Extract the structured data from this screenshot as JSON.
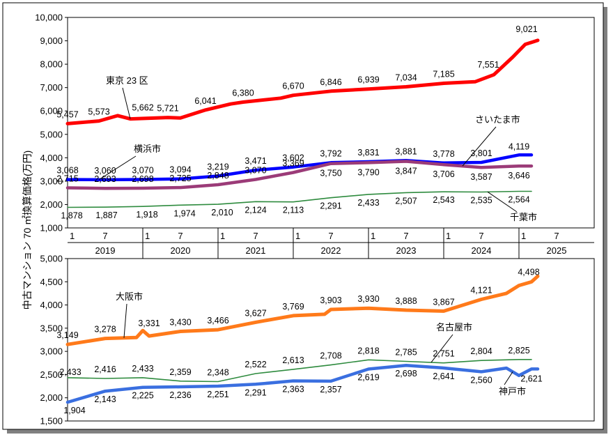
{
  "y_axis_label": "中古マンション 70 ㎡換算価格(万円)",
  "x_axis": {
    "month_ticks": [
      "1",
      "7"
    ],
    "years": [
      "2019",
      "2020",
      "2021",
      "2022",
      "2023",
      "2024",
      "2025"
    ]
  },
  "chart_data": [
    {
      "type": "line",
      "panel": "top",
      "ylim": [
        1000,
        10000
      ],
      "yticks": [
        "1,000",
        "2,000",
        "3,000",
        "4,000",
        "5,000",
        "6,000",
        "7,000",
        "8,000",
        "9,000",
        "10,000"
      ],
      "x_range": [
        "2019-01",
        "2025-12"
      ],
      "grid": false,
      "series": [
        {
          "name": "東京 23 区",
          "color": "#ff0000",
          "points": [
            [
              "2019-01",
              5457
            ],
            [
              "2019-06",
              5573
            ],
            [
              "2019-09",
              5800
            ],
            [
              "2019-11",
              5662
            ],
            [
              "2020-05",
              5721
            ],
            [
              "2020-07",
              5700
            ],
            [
              "2020-11",
              6041
            ],
            [
              "2021-03",
              6300
            ],
            [
              "2021-05",
              6380
            ],
            [
              "2021-11",
              6550
            ],
            [
              "2022-01",
              6670
            ],
            [
              "2022-07",
              6846
            ],
            [
              "2023-01",
              6939
            ],
            [
              "2023-07",
              7034
            ],
            [
              "2024-01",
              7185
            ],
            [
              "2024-06",
              7250
            ],
            [
              "2024-09",
              7551
            ],
            [
              "2024-12",
              8300
            ],
            [
              "2025-02",
              8850
            ],
            [
              "2025-04",
              9021
            ]
          ],
          "labels": [
            {
              "at": "2019-01",
              "text": "5,457"
            },
            {
              "at": "2019-06",
              "text": "5,573"
            },
            {
              "at": "2019-11",
              "text": "5,662"
            },
            {
              "at": "2020-05",
              "text": "5,721"
            },
            {
              "at": "2020-11",
              "text": "6,041"
            },
            {
              "at": "2021-05",
              "text": "6,380"
            },
            {
              "at": "2022-01",
              "text": "6,670"
            },
            {
              "at": "2022-07",
              "text": "6,846"
            },
            {
              "at": "2023-01",
              "text": "6,939"
            },
            {
              "at": "2023-07",
              "text": "7,034"
            },
            {
              "at": "2024-01",
              "text": "7,185"
            },
            {
              "at": "2024-09",
              "text": "7,551"
            },
            {
              "at": "2025-04",
              "text": "9,021"
            }
          ]
        },
        {
          "name": "横浜市",
          "color": "#0000ff",
          "points": [
            [
              "2019-01",
              3068
            ],
            [
              "2019-07",
              3060
            ],
            [
              "2020-01",
              3070
            ],
            [
              "2020-07",
              3094
            ],
            [
              "2021-01",
              3219
            ],
            [
              "2021-07",
              3471
            ],
            [
              "2022-01",
              3602
            ],
            [
              "2022-07",
              3792
            ],
            [
              "2023-01",
              3831
            ],
            [
              "2023-07",
              3881
            ],
            [
              "2024-01",
              3778
            ],
            [
              "2024-07",
              3801
            ],
            [
              "2025-01",
              4119
            ],
            [
              "2025-03",
              4119
            ]
          ],
          "labels": [
            {
              "at": "2019-01",
              "text": "3,068"
            },
            {
              "at": "2019-07",
              "text": "3,060"
            },
            {
              "at": "2020-01",
              "text": "3,070"
            },
            {
              "at": "2020-07",
              "text": "3,094"
            },
            {
              "at": "2021-01",
              "text": "3,219"
            },
            {
              "at": "2021-07",
              "text": "3,471"
            },
            {
              "at": "2022-01",
              "text": "3,602"
            },
            {
              "at": "2022-07",
              "text": "3,792"
            },
            {
              "at": "2023-01",
              "text": "3,831"
            },
            {
              "at": "2023-07",
              "text": "3,881"
            },
            {
              "at": "2024-01",
              "text": "3,778"
            },
            {
              "at": "2024-07",
              "text": "3,801"
            },
            {
              "at": "2025-01",
              "text": "4,119"
            }
          ]
        },
        {
          "name": "さいたま市",
          "color": "#9b3b78",
          "points": [
            [
              "2019-01",
              2715
            ],
            [
              "2019-07",
              2693
            ],
            [
              "2020-01",
              2698
            ],
            [
              "2020-07",
              2725
            ],
            [
              "2021-01",
              2848
            ],
            [
              "2021-07",
              3070
            ],
            [
              "2022-01",
              3369
            ],
            [
              "2022-07",
              3750
            ],
            [
              "2023-01",
              3790
            ],
            [
              "2023-07",
              3847
            ],
            [
              "2024-01",
              3706
            ],
            [
              "2024-07",
              3587
            ],
            [
              "2025-01",
              3646
            ],
            [
              "2025-03",
              3646
            ]
          ],
          "labels": [
            {
              "at": "2019-01",
              "text": "2,715"
            },
            {
              "at": "2019-07",
              "text": "2,693"
            },
            {
              "at": "2020-01",
              "text": "2,698"
            },
            {
              "at": "2020-07",
              "text": "2,725"
            },
            {
              "at": "2021-01",
              "text": "2,848"
            },
            {
              "at": "2021-07",
              "text": "3,070"
            },
            {
              "at": "2022-01",
              "text": "3,369"
            },
            {
              "at": "2022-07",
              "text": "3,750"
            },
            {
              "at": "2023-01",
              "text": "3,790"
            },
            {
              "at": "2023-07",
              "text": "3,847"
            },
            {
              "at": "2024-01",
              "text": "3,706"
            },
            {
              "at": "2024-07",
              "text": "3,587"
            },
            {
              "at": "2025-01",
              "text": "3,646"
            }
          ]
        },
        {
          "name": "千葉市",
          "color": "#2e8b3e",
          "points": [
            [
              "2019-01",
              1878
            ],
            [
              "2019-07",
              1887
            ],
            [
              "2020-01",
              1918
            ],
            [
              "2020-07",
              1974
            ],
            [
              "2021-01",
              2010
            ],
            [
              "2021-07",
              2124
            ],
            [
              "2022-01",
              2113
            ],
            [
              "2022-07",
              2291
            ],
            [
              "2023-01",
              2433
            ],
            [
              "2023-07",
              2507
            ],
            [
              "2024-01",
              2543
            ],
            [
              "2024-07",
              2535
            ],
            [
              "2025-01",
              2564
            ],
            [
              "2025-03",
              2564
            ]
          ],
          "labels": [
            {
              "at": "2019-01",
              "text": "1,878"
            },
            {
              "at": "2019-07",
              "text": "1,887"
            },
            {
              "at": "2020-01",
              "text": "1,918"
            },
            {
              "at": "2020-07",
              "text": "1,974"
            },
            {
              "at": "2021-01",
              "text": "2,010"
            },
            {
              "at": "2021-07",
              "text": "2,124"
            },
            {
              "at": "2022-01",
              "text": "2,113"
            },
            {
              "at": "2022-07",
              "text": "2,291"
            },
            {
              "at": "2023-01",
              "text": "2,433"
            },
            {
              "at": "2023-07",
              "text": "2,507"
            },
            {
              "at": "2024-01",
              "text": "2,543"
            },
            {
              "at": "2024-07",
              "text": "2,535"
            },
            {
              "at": "2025-01",
              "text": "2,564"
            }
          ]
        }
      ]
    },
    {
      "type": "line",
      "panel": "bottom",
      "ylim": [
        1500,
        5000
      ],
      "yticks": [
        "1,500",
        "2,000",
        "2,500",
        "3,000",
        "3,500",
        "4,000",
        "4,500",
        "5,000"
      ],
      "x_range": [
        "2019-01",
        "2025-12"
      ],
      "grid": false,
      "series": [
        {
          "name": "大阪市",
          "color": "#ff7a1a",
          "points": [
            [
              "2019-01",
              3149
            ],
            [
              "2019-07",
              3278
            ],
            [
              "2019-12",
              3300
            ],
            [
              "2020-01",
              3450
            ],
            [
              "2020-02",
              3331
            ],
            [
              "2020-07",
              3430
            ],
            [
              "2021-01",
              3466
            ],
            [
              "2021-07",
              3627
            ],
            [
              "2022-01",
              3769
            ],
            [
              "2022-06",
              3800
            ],
            [
              "2022-07",
              3903
            ],
            [
              "2023-01",
              3930
            ],
            [
              "2023-07",
              3888
            ],
            [
              "2024-01",
              3867
            ],
            [
              "2024-07",
              4121
            ],
            [
              "2024-11",
              4250
            ],
            [
              "2025-01",
              4420
            ],
            [
              "2025-03",
              4498
            ],
            [
              "2025-04",
              4620
            ]
          ],
          "labels": [
            {
              "at": "2019-01",
              "text": "3,149"
            },
            {
              "at": "2019-07",
              "text": "3,278"
            },
            {
              "at": "2020-02",
              "text": "3,331"
            },
            {
              "at": "2020-07",
              "text": "3,430"
            },
            {
              "at": "2021-01",
              "text": "3,466"
            },
            {
              "at": "2021-07",
              "text": "3,627"
            },
            {
              "at": "2022-01",
              "text": "3,769"
            },
            {
              "at": "2022-07",
              "text": "3,903"
            },
            {
              "at": "2023-01",
              "text": "3,930"
            },
            {
              "at": "2023-07",
              "text": "3,888"
            },
            {
              "at": "2024-01",
              "text": "3,867"
            },
            {
              "at": "2024-07",
              "text": "4,121"
            },
            {
              "at": "2025-03",
              "text": "4,498"
            }
          ]
        },
        {
          "name": "名古屋市",
          "color": "#2e8b3e",
          "points": [
            [
              "2019-01",
              2433
            ],
            [
              "2019-07",
              2416
            ],
            [
              "2020-01",
              2433
            ],
            [
              "2020-07",
              2359
            ],
            [
              "2021-01",
              2348
            ],
            [
              "2021-07",
              2522
            ],
            [
              "2022-01",
              2613
            ],
            [
              "2022-07",
              2708
            ],
            [
              "2023-01",
              2818
            ],
            [
              "2023-07",
              2785
            ],
            [
              "2024-01",
              2751
            ],
            [
              "2024-07",
              2804
            ],
            [
              "2025-01",
              2825
            ],
            [
              "2025-03",
              2825
            ]
          ],
          "labels": [
            {
              "at": "2019-01",
              "text": "2,433"
            },
            {
              "at": "2019-07",
              "text": "2,416"
            },
            {
              "at": "2020-01",
              "text": "2,433"
            },
            {
              "at": "2020-07",
              "text": "2,359"
            },
            {
              "at": "2021-01",
              "text": "2,348"
            },
            {
              "at": "2021-07",
              "text": "2,522"
            },
            {
              "at": "2022-01",
              "text": "2,613"
            },
            {
              "at": "2022-07",
              "text": "2,708"
            },
            {
              "at": "2023-01",
              "text": "2,818"
            },
            {
              "at": "2023-07",
              "text": "2,785"
            },
            {
              "at": "2024-01",
              "text": "2,751"
            },
            {
              "at": "2024-07",
              "text": "2,804"
            },
            {
              "at": "2025-01",
              "text": "2,825"
            }
          ]
        },
        {
          "name": "神戸市",
          "color": "#3a6fe0",
          "points": [
            [
              "2019-01",
              1904
            ],
            [
              "2019-07",
              2143
            ],
            [
              "2020-01",
              2225
            ],
            [
              "2020-07",
              2236
            ],
            [
              "2021-01",
              2251
            ],
            [
              "2021-07",
              2291
            ],
            [
              "2022-01",
              2363
            ],
            [
              "2022-07",
              2357
            ],
            [
              "2023-01",
              2619
            ],
            [
              "2023-07",
              2698
            ],
            [
              "2024-01",
              2641
            ],
            [
              "2024-07",
              2560
            ],
            [
              "2024-11",
              2640
            ],
            [
              "2025-01",
              2480
            ],
            [
              "2025-03",
              2621
            ],
            [
              "2025-04",
              2621
            ]
          ],
          "labels": [
            {
              "at": "2019-01",
              "text": "1,904"
            },
            {
              "at": "2019-07",
              "text": "2,143"
            },
            {
              "at": "2020-01",
              "text": "2,225"
            },
            {
              "at": "2020-07",
              "text": "2,236"
            },
            {
              "at": "2021-01",
              "text": "2,251"
            },
            {
              "at": "2021-07",
              "text": "2,291"
            },
            {
              "at": "2022-01",
              "text": "2,363"
            },
            {
              "at": "2022-07",
              "text": "2,357"
            },
            {
              "at": "2023-01",
              "text": "2,619"
            },
            {
              "at": "2023-07",
              "text": "2,698"
            },
            {
              "at": "2024-01",
              "text": "2,641"
            },
            {
              "at": "2024-07",
              "text": "2,560"
            },
            {
              "at": "2025-03",
              "text": "2,621"
            }
          ]
        }
      ]
    }
  ]
}
